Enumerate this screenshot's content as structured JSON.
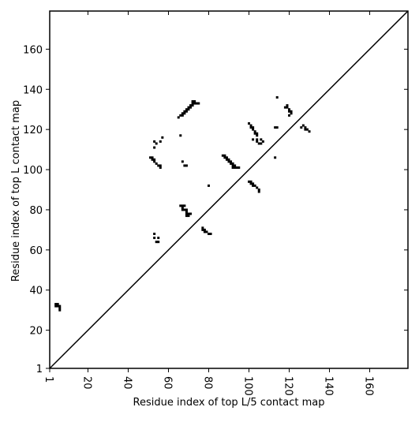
{
  "chart_data": {
    "type": "scatter",
    "xlabel": "Residue index of top L/5 contact map",
    "ylabel": "Residue index of top L contact map",
    "xlim": [
      1,
      179
    ],
    "ylim": [
      1,
      179
    ],
    "xticks": [
      1,
      20,
      40,
      60,
      80,
      100,
      120,
      140,
      160
    ],
    "yticks": [
      1,
      20,
      40,
      60,
      80,
      100,
      120,
      140,
      160
    ],
    "color": "#000000",
    "diagonal": true,
    "x": [
      4,
      5,
      4,
      5,
      6,
      6,
      6,
      51,
      52,
      52,
      53,
      53,
      54,
      55,
      56,
      56,
      53,
      54,
      53,
      56,
      57,
      53,
      53,
      55,
      54,
      55,
      66,
      65,
      66,
      67,
      67,
      68,
      68,
      69,
      69,
      70,
      70,
      71,
      71,
      72,
      72,
      73,
      72,
      73,
      74,
      75,
      67,
      68,
      69,
      66,
      67,
      68,
      67,
      67,
      68,
      69,
      69,
      69,
      70,
      70,
      71,
      69,
      77,
      77,
      78,
      78,
      79,
      80,
      81,
      80,
      87,
      88,
      88,
      89,
      89,
      90,
      90,
      91,
      91,
      92,
      92,
      93,
      93,
      94,
      95,
      92,
      100,
      101,
      101,
      102,
      102,
      103,
      104,
      105,
      105,
      100,
      101,
      101,
      102,
      102,
      103,
      103,
      104,
      104,
      102,
      104,
      104,
      105,
      106,
      106,
      107,
      113,
      113,
      114,
      114,
      118,
      119,
      119,
      120,
      120,
      121,
      121,
      120,
      126,
      127,
      128,
      128,
      129,
      130
    ],
    "y": [
      33,
      33,
      32,
      32,
      32,
      31,
      30,
      106,
      106,
      105,
      105,
      104,
      103,
      102,
      102,
      101,
      114,
      113,
      111,
      114,
      116,
      68,
      66,
      66,
      64,
      64,
      117,
      126,
      127,
      127,
      128,
      128,
      129,
      129,
      130,
      130,
      131,
      131,
      132,
      132,
      133,
      133,
      134,
      134,
      133,
      133,
      104,
      102,
      102,
      82,
      82,
      82,
      81,
      80,
      80,
      80,
      79,
      78,
      78,
      77,
      78,
      77,
      71,
      70,
      70,
      69,
      69,
      68,
      68,
      92,
      107,
      107,
      106,
      106,
      105,
      105,
      104,
      104,
      103,
      103,
      102,
      102,
      101,
      101,
      101,
      101,
      94,
      94,
      93,
      93,
      92,
      92,
      91,
      90,
      89,
      123,
      122,
      121,
      121,
      120,
      119,
      118,
      118,
      117,
      115,
      115,
      114,
      113,
      113,
      115,
      114,
      106,
      121,
      121,
      136,
      131,
      132,
      131,
      130,
      129,
      129,
      128,
      127,
      121,
      122,
      121,
      120,
      120,
      119
    ]
  }
}
